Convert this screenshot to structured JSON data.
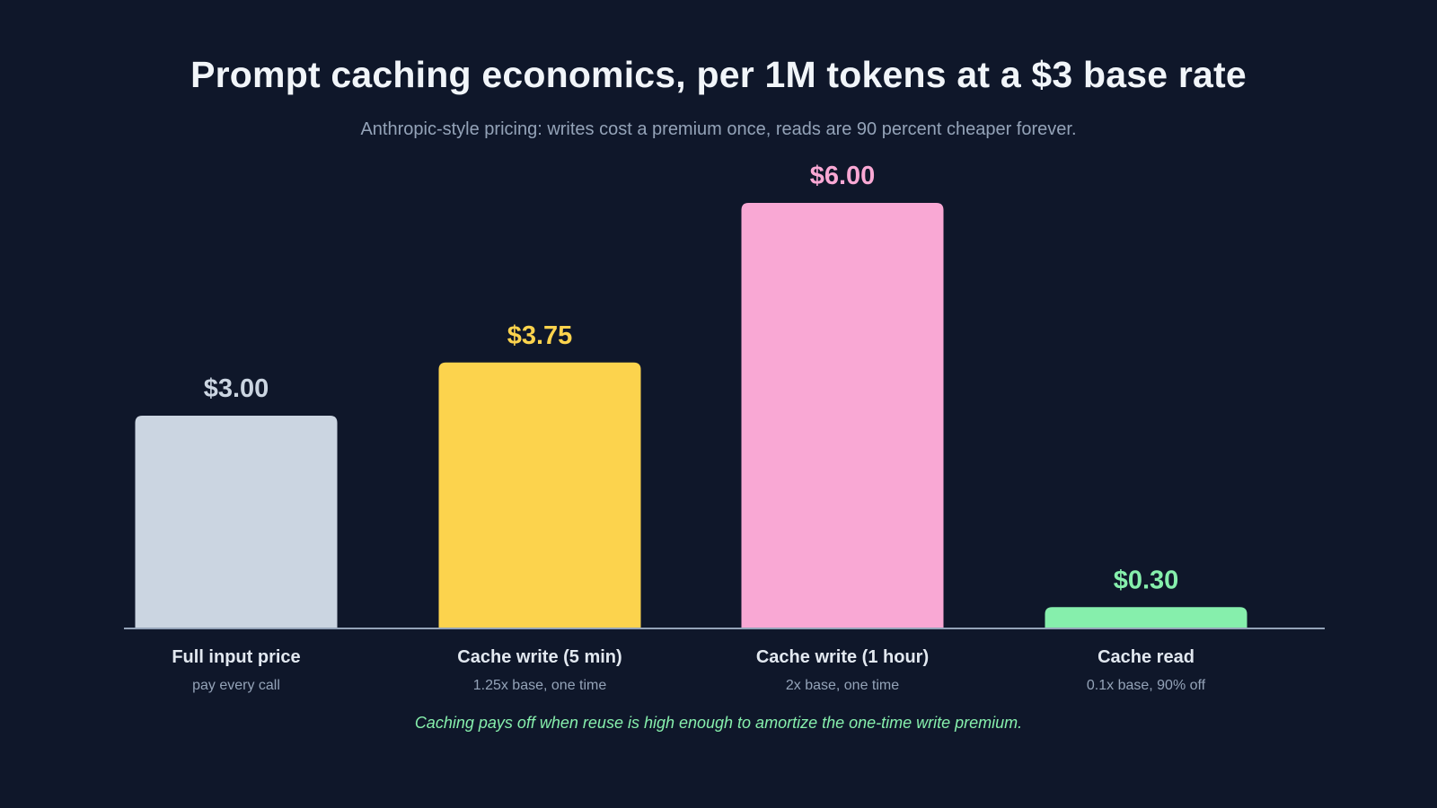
{
  "page": {
    "title": "Prompt caching economics, per 1M tokens at a $3 base rate",
    "subtitle": "Anthropic-style pricing: writes cost a premium once, reads are 90 percent cheaper forever.",
    "footnote": "Caching pays off when reuse is high enough to amortize the one-time write premium."
  },
  "colors": {
    "background": "#0f172a",
    "baseline": "#94a3b8",
    "category_label": "#e2e8f0",
    "category_note": "#94a3b8"
  },
  "chart_data": {
    "type": "bar",
    "categories": [
      "Full input price",
      "Cache write (5 min)",
      "Cache write (1 hour)",
      "Cache read"
    ],
    "category_notes": [
      "pay every call",
      "1.25x base, one time",
      "2x base, one time",
      "0.1x base, 90% off"
    ],
    "values": [
      3.0,
      3.75,
      6.0,
      0.3
    ],
    "value_labels": [
      "$3.00",
      "$3.75",
      "$6.00",
      "$0.30"
    ],
    "bar_colors": [
      "#cbd5e1",
      "#fcd34d",
      "#f9a8d4",
      "#86efac"
    ],
    "ylim": [
      0,
      6
    ],
    "grid": false,
    "legend": "none"
  }
}
